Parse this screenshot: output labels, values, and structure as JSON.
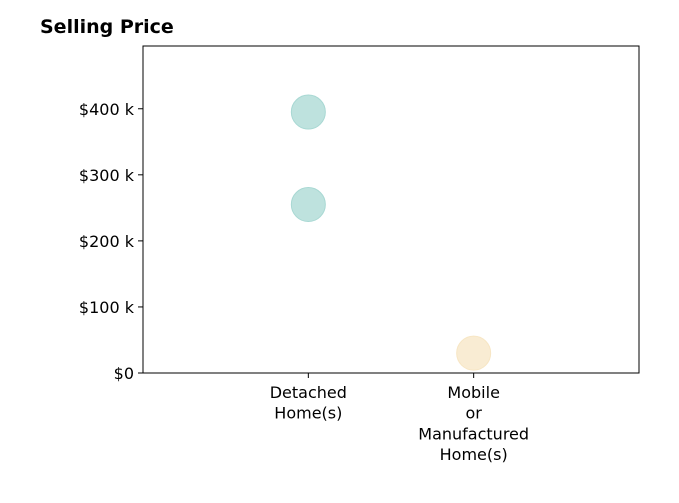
{
  "chart_data": {
    "type": "scatter",
    "title": "Selling Price",
    "xlabel": "",
    "ylabel": "",
    "categories": [
      [
        "Detached",
        "Home(s)"
      ],
      [
        "Mobile",
        "or",
        "Manufactured",
        "Home(s)"
      ]
    ],
    "xlim": [
      -1,
      2
    ],
    "ylim": [
      0,
      495000
    ],
    "yticks": [
      0,
      100000,
      200000,
      300000,
      400000
    ],
    "ytick_labels": [
      "$0",
      "$100 k",
      "$200 k",
      "$300 k",
      "$400 k"
    ],
    "grid": false,
    "legend": "none",
    "points": [
      {
        "category": 0,
        "value": 395000,
        "color": "#a8d8d3"
      },
      {
        "category": 0,
        "value": 255000,
        "color": "#a8d8d3"
      },
      {
        "category": 1,
        "value": 30000,
        "color": "#f7e6c4"
      }
    ]
  }
}
